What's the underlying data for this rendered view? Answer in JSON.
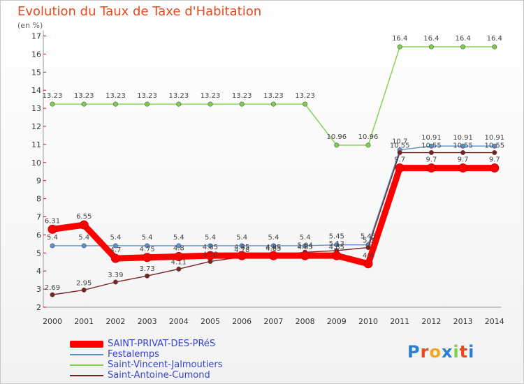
{
  "title": "Evolution du Taux de Taxe d'Habitation",
  "unit": "(en %)",
  "logo": "Proxiti",
  "chart_data": {
    "type": "line",
    "title": "Evolution du Taux de Taxe d'Habitation",
    "ylabel": "(en %)",
    "xlabel": "",
    "x": [
      "2000",
      "2001",
      "2002",
      "2003",
      "2004",
      "2005",
      "2006",
      "2007",
      "2008",
      "2009",
      "2010",
      "2011",
      "2012",
      "2013",
      "2014"
    ],
    "ylim": [
      2,
      17
    ],
    "yticks": [
      2,
      3,
      4,
      5,
      6,
      7,
      8,
      9,
      10,
      11,
      12,
      13,
      14,
      15,
      16,
      17
    ],
    "legend": "bottom-left",
    "grid": false,
    "series": [
      {
        "name": "SAINT-PRIVAT-DES-PRéS",
        "color": "#ff0000",
        "values": [
          6.31,
          6.55,
          4.7,
          4.75,
          4.8,
          4.85,
          4.85,
          4.85,
          4.85,
          4.85,
          4.4,
          9.7,
          9.7,
          9.7,
          9.7
        ]
      },
      {
        "name": "Festalemps",
        "color": "#5b8fd0",
        "values": [
          5.4,
          5.4,
          5.4,
          5.4,
          5.4,
          5.4,
          5.4,
          5.4,
          5.4,
          5.45,
          5.45,
          10.7,
          10.91,
          10.91,
          10.91
        ]
      },
      {
        "name": "Saint-Vincent-Jalmoutiers",
        "color": "#7ed04b",
        "values": [
          13.23,
          13.23,
          13.23,
          13.23,
          13.23,
          13.23,
          13.23,
          13.23,
          13.23,
          10.96,
          10.96,
          16.4,
          16.4,
          16.4,
          16.4
        ]
      },
      {
        "name": "Saint-Antoine-Cumond",
        "color": "#7a2222",
        "values": [
          2.69,
          2.95,
          3.39,
          3.73,
          4.11,
          4.53,
          4.78,
          4.85,
          5.04,
          5.13,
          5.3,
          10.55,
          10.55,
          10.55,
          10.55
        ]
      }
    ],
    "labels": [
      [
        "6.31",
        "6.55",
        "4.7",
        "4.75",
        "4.8",
        "4.85",
        "4.85",
        "4.85",
        "4.85",
        "4.85",
        "4.4",
        "9.7",
        "9.7",
        "9.7",
        "9.7"
      ],
      [
        "5.4",
        "5.4",
        "5.4",
        "5.4",
        "5.4",
        "5.4",
        "5.4",
        "5.4",
        "5.4",
        "5.45",
        "5.45",
        "10.7",
        "10.91",
        "10.91",
        "10.91"
      ],
      [
        "13.23",
        "13.23",
        "13.23",
        "13.23",
        "13.23",
        "13.23",
        "13.23",
        "13.23",
        "13.23",
        "10.96",
        "10.96",
        "16.4",
        "16.4",
        "16.4",
        "16.4"
      ],
      [
        "2.69",
        "2.95",
        "3.39",
        "3.73",
        "4.11",
        "4.53",
        "4.78",
        "4.85",
        "5.04",
        "5.13",
        "5.3",
        "10.55",
        "10.55",
        "10.55",
        "10.55"
      ]
    ]
  },
  "legend": [
    {
      "label": "SAINT-PRIVAT-DES-PRéS",
      "color": "#ff0000"
    },
    {
      "label": "Festalemps",
      "color": "#5b8fd0"
    },
    {
      "label": "Saint-Vincent-Jalmoutiers",
      "color": "#7ed04b"
    },
    {
      "label": "Saint-Antoine-Cumond",
      "color": "#7a2222"
    }
  ]
}
